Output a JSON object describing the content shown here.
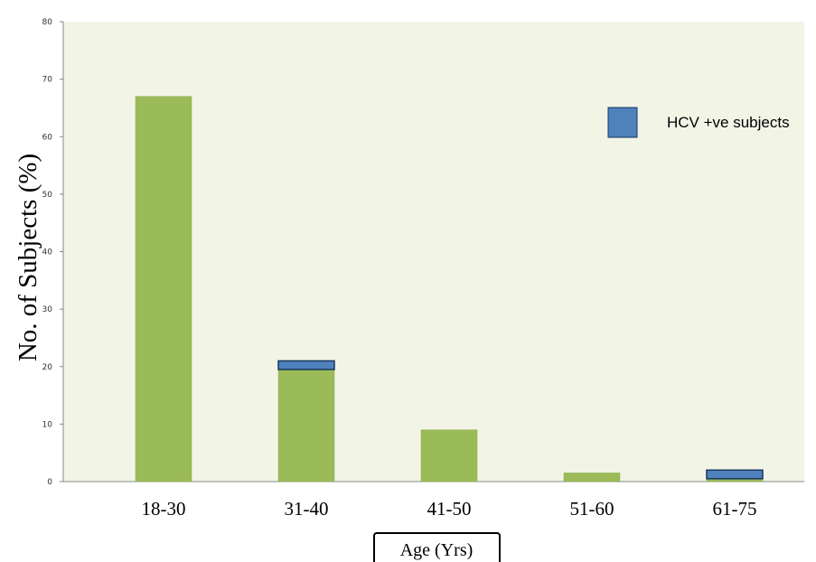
{
  "chart_data": {
    "type": "bar",
    "categories": [
      "18-30",
      "31-40",
      "41-50",
      "51-60",
      "61-75"
    ],
    "series": [
      {
        "values": [
          67,
          19.5,
          9,
          1.5,
          0.5
        ]
      },
      {
        "name": "HCV +ve subjects",
        "values": [
          0,
          1.5,
          0,
          0,
          1.5
        ]
      }
    ],
    "stacked": true,
    "ylim": [
      0,
      80
    ],
    "yticks": [
      0,
      10,
      20,
      30,
      40,
      50,
      60,
      70,
      80
    ],
    "xlabel": "Age (Yrs)",
    "ylabel": "No. of Subjects (%)",
    "legend": {
      "position": "top-right"
    },
    "grid": false,
    "colors": {
      "base": "#9BBB59",
      "base_edge": "#8AAA4A",
      "hcv": "#4F81BD",
      "hcv_edge": "#17375E",
      "plot_bg": "#F2F5E6",
      "axis": "#888888"
    }
  }
}
